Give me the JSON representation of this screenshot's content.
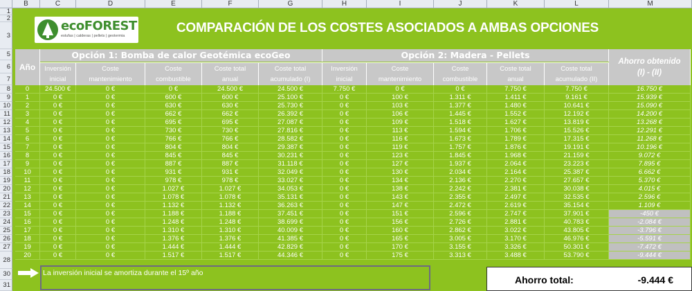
{
  "columns": [
    "B",
    "C",
    "D",
    "E",
    "F",
    "G",
    "H",
    "I",
    "J",
    "K",
    "L",
    "M"
  ],
  "row_numbers": [
    "1",
    "2",
    "3",
    "5",
    "6",
    "7",
    "8",
    "9",
    "10",
    "11",
    "12",
    "13",
    "14",
    "15",
    "16",
    "17",
    "18",
    "19",
    "20",
    "21",
    "22",
    "23",
    "24",
    "25",
    "26",
    "27",
    "28",
    "30",
    "31"
  ],
  "logo": {
    "name": "ecoFOREST",
    "tagline": "estufas | calderas | pellets | geotermia"
  },
  "title": "COMPARACIÓN DE LOS COSTES ASOCIADOS A AMBAS OPCIONES",
  "headers": {
    "year": "Año",
    "option1": "Opción 1: Bomba de calor Geotémica ecoGeo",
    "option2": "Opción 2: Madera - Pellets",
    "saving_line1": "Ahorro obtenido",
    "saving_line2": "(I) - (II)",
    "option1_sub": [
      [
        "Inversión",
        "inicial"
      ],
      [
        "Coste",
        "mantenimiento"
      ],
      [
        "Coste",
        "combustible"
      ],
      [
        "Coste total",
        "anual"
      ],
      [
        "Coste total",
        "acumulado (I)"
      ]
    ],
    "option2_sub": [
      [
        "Inversión",
        "inicial"
      ],
      [
        "Coste",
        "mantenimiento"
      ],
      [
        "Coste",
        "combustible"
      ],
      [
        "Coste total",
        "anual"
      ],
      [
        "Coste total",
        "acumulado (II)"
      ]
    ]
  },
  "rows": [
    [
      "0",
      "24.500 €",
      "0 €",
      "0 €",
      "24.500 €",
      "24.500 €",
      "7.750 €",
      "0 €",
      "0 €",
      "7.750 €",
      "7.750 €",
      "16.750 €"
    ],
    [
      "1",
      "0 €",
      "0 €",
      "600 €",
      "600 €",
      "25.100 €",
      "0 €",
      "100 €",
      "1.311 €",
      "1.411 €",
      "9.161 €",
      "15.939 €"
    ],
    [
      "2",
      "0 €",
      "0 €",
      "630 €",
      "630 €",
      "25.730 €",
      "0 €",
      "103 €",
      "1.377 €",
      "1.480 €",
      "10.641 €",
      "15.090 €"
    ],
    [
      "3",
      "0 €",
      "0 €",
      "662 €",
      "662 €",
      "26.392 €",
      "0 €",
      "106 €",
      "1.445 €",
      "1.552 €",
      "12.192 €",
      "14.200 €"
    ],
    [
      "4",
      "0 €",
      "0 €",
      "695 €",
      "695 €",
      "27.087 €",
      "0 €",
      "109 €",
      "1.518 €",
      "1.627 €",
      "13.819 €",
      "13.268 €"
    ],
    [
      "5",
      "0 €",
      "0 €",
      "730 €",
      "730 €",
      "27.816 €",
      "0 €",
      "113 €",
      "1.594 €",
      "1.706 €",
      "15.526 €",
      "12.291 €"
    ],
    [
      "6",
      "0 €",
      "0 €",
      "766 €",
      "766 €",
      "28.582 €",
      "0 €",
      "116 €",
      "1.673 €",
      "1.789 €",
      "17.315 €",
      "11.268 €"
    ],
    [
      "7",
      "0 €",
      "0 €",
      "804 €",
      "804 €",
      "29.387 €",
      "0 €",
      "119 €",
      "1.757 €",
      "1.876 €",
      "19.191 €",
      "10.196 €"
    ],
    [
      "8",
      "0 €",
      "0 €",
      "845 €",
      "845 €",
      "30.231 €",
      "0 €",
      "123 €",
      "1.845 €",
      "1.968 €",
      "21.159 €",
      "9.072 €"
    ],
    [
      "9",
      "0 €",
      "0 €",
      "887 €",
      "887 €",
      "31.118 €",
      "0 €",
      "127 €",
      "1.937 €",
      "2.064 €",
      "23.223 €",
      "7.895 €"
    ],
    [
      "10",
      "0 €",
      "0 €",
      "931 €",
      "931 €",
      "32.049 €",
      "0 €",
      "130 €",
      "2.034 €",
      "2.164 €",
      "25.387 €",
      "6.662 €"
    ],
    [
      "11",
      "0 €",
      "0 €",
      "978 €",
      "978 €",
      "33.027 €",
      "0 €",
      "134 €",
      "2.136 €",
      "2.270 €",
      "27.657 €",
      "5.370 €"
    ],
    [
      "12",
      "0 €",
      "0 €",
      "1.027 €",
      "1.027 €",
      "34.053 €",
      "0 €",
      "138 €",
      "2.242 €",
      "2.381 €",
      "30.038 €",
      "4.015 €"
    ],
    [
      "13",
      "0 €",
      "0 €",
      "1.078 €",
      "1.078 €",
      "35.131 €",
      "0 €",
      "143 €",
      "2.355 €",
      "2.497 €",
      "32.535 €",
      "2.596 €"
    ],
    [
      "14",
      "0 €",
      "0 €",
      "1.132 €",
      "1.132 €",
      "36.263 €",
      "0 €",
      "147 €",
      "2.472 €",
      "2.619 €",
      "35.154 €",
      "1.109 €"
    ],
    [
      "15",
      "0 €",
      "0 €",
      "1.188 €",
      "1.188 €",
      "37.451 €",
      "0 €",
      "151 €",
      "2.596 €",
      "2.747 €",
      "37.901 €",
      "-450 €"
    ],
    [
      "16",
      "0 €",
      "0 €",
      "1.248 €",
      "1.248 €",
      "38.699 €",
      "0 €",
      "156 €",
      "2.726 €",
      "2.881 €",
      "40.783 €",
      "-2.084 €"
    ],
    [
      "17",
      "0 €",
      "0 €",
      "1.310 €",
      "1.310 €",
      "40.009 €",
      "0 €",
      "160 €",
      "2.862 €",
      "3.022 €",
      "43.805 €",
      "-3.796 €"
    ],
    [
      "18",
      "0 €",
      "0 €",
      "1.376 €",
      "1.376 €",
      "41.385 €",
      "0 €",
      "165 €",
      "3.005 €",
      "3.170 €",
      "46.976 €",
      "-5.591 €"
    ],
    [
      "19",
      "0 €",
      "0 €",
      "1.444 €",
      "1.444 €",
      "42.829 €",
      "0 €",
      "170 €",
      "3.155 €",
      "3.326 €",
      "50.301 €",
      "-7.472 €"
    ],
    [
      "20",
      "0 €",
      "0 €",
      "1.517 €",
      "1.517 €",
      "44.346 €",
      "0 €",
      "175 €",
      "3.313 €",
      "3.488 €",
      "53.790 €",
      "-9.444 €"
    ]
  ],
  "note": "La inversión inicial se amortiza durante el 15º año",
  "total": {
    "label": "Ahorro total:",
    "value": "-9.444 €"
  },
  "colors": {
    "sheet_green": "#8dc21f",
    "header_gray": "#c8c8c8",
    "negative_gray": "#c0c0c0"
  }
}
